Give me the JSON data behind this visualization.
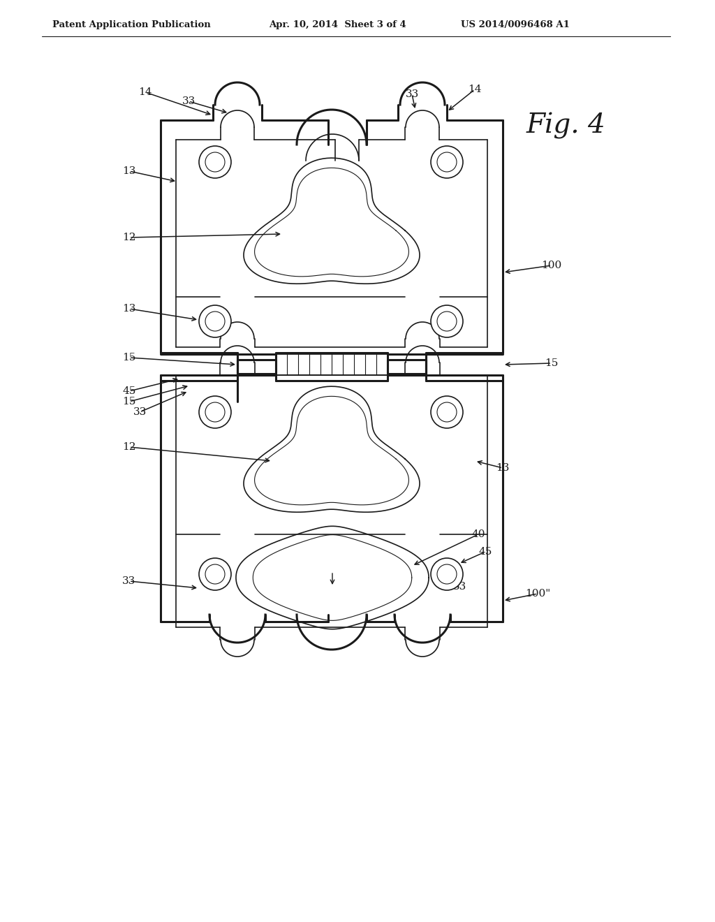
{
  "title": "Fig. 4",
  "header_left": "Patent Application Publication",
  "header_center": "Apr. 10, 2014  Sheet 3 of 4",
  "header_right": "US 2014/0096468 A1",
  "background_color": "#ffffff",
  "line_color": "#1a1a1a",
  "fig_width": 10.24,
  "fig_height": 13.2,
  "dpi": 100
}
